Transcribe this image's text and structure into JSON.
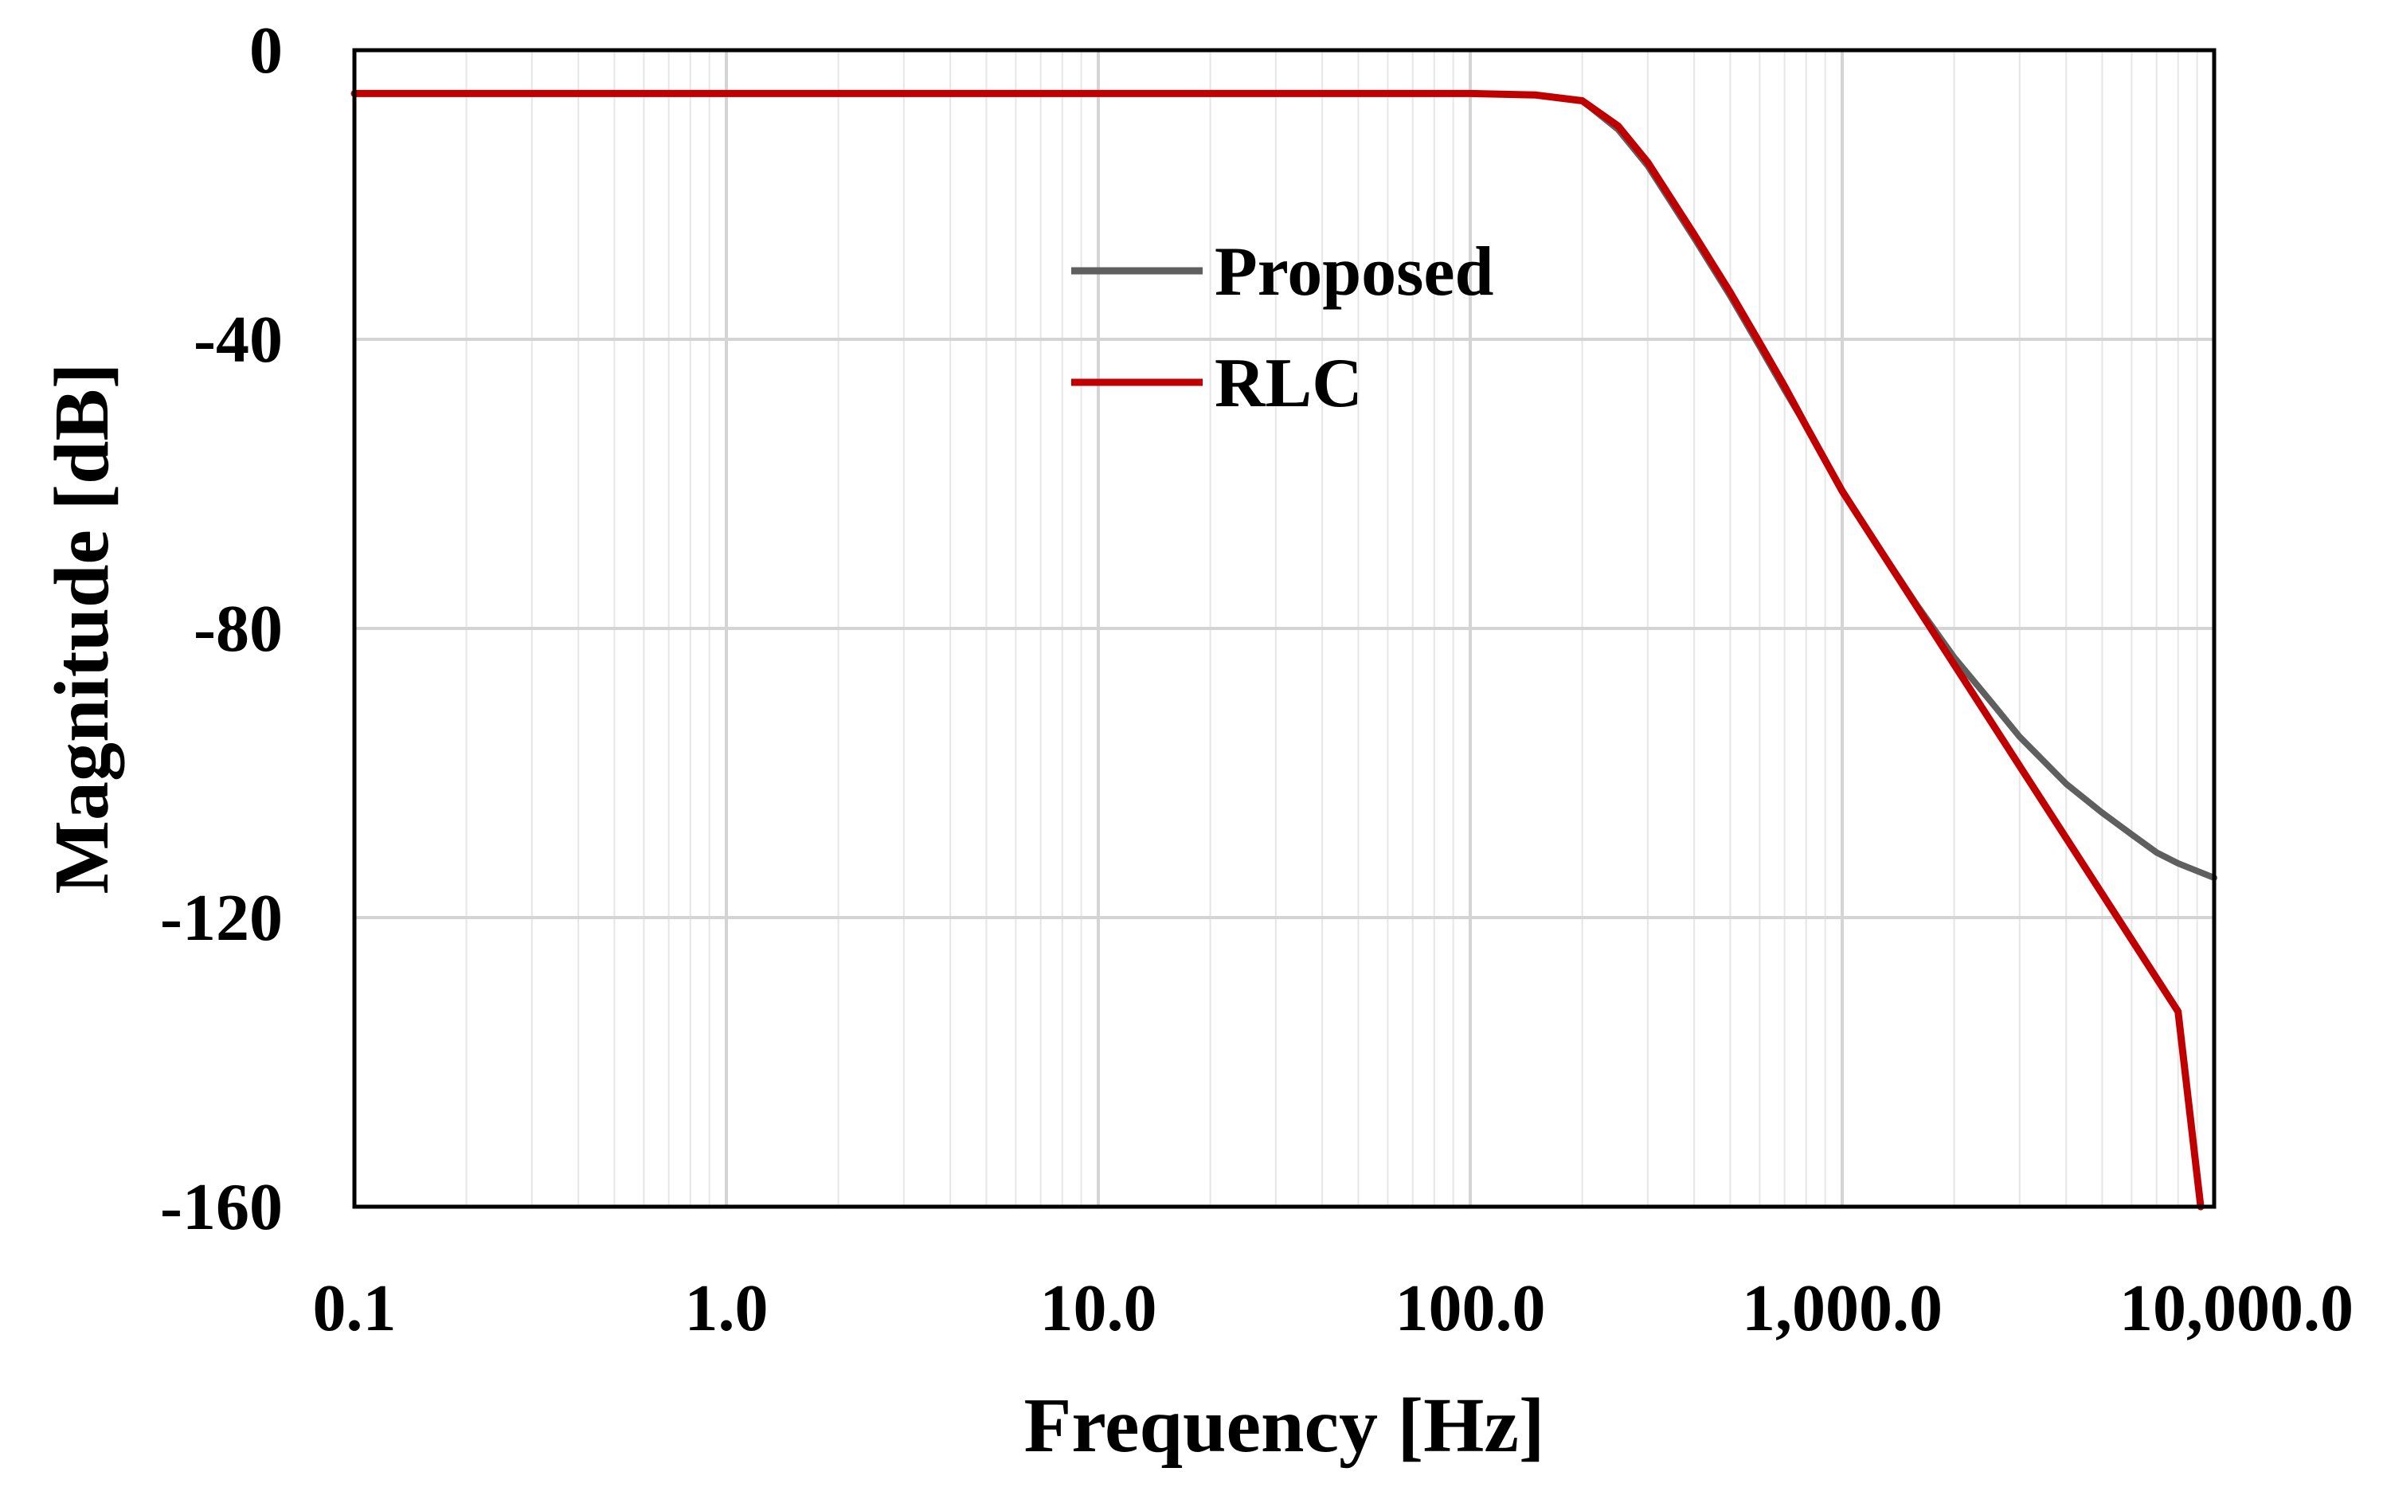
{
  "chart_data": {
    "type": "line",
    "title": "",
    "xlabel": "Frequency [Hz]",
    "ylabel": "Magnitude [dB]",
    "xscale": "log",
    "xlim": [
      0.1,
      10000
    ],
    "ylim": [
      -160,
      0
    ],
    "grid": true,
    "legend_position": "center-top",
    "x_ticks": [
      0.1,
      1,
      10,
      100,
      1000,
      10000
    ],
    "x_tick_labels": [
      "0.1",
      "1.0",
      "10.0",
      "100.0",
      "1,000.0",
      "10,000.0"
    ],
    "y_ticks": [
      0,
      -40,
      -80,
      -120,
      -160
    ],
    "y_tick_labels": [
      "0",
      "-40",
      "-80",
      "-120",
      "-160"
    ],
    "series": [
      {
        "name": "Proposed",
        "color": "#5f5f5f",
        "x": [
          0.1,
          1,
          10,
          100,
          150,
          200,
          250,
          300,
          400,
          500,
          600,
          700,
          800,
          1000,
          1300,
          1600,
          2000,
          2500,
          3000,
          4000,
          5000,
          6000,
          7000,
          8000,
          10000
        ],
        "y": [
          -6,
          -6,
          -6,
          -6,
          -6.2,
          -7,
          -11,
          -16,
          -26,
          -34,
          -41,
          -47,
          -52,
          -61,
          -70,
          -77,
          -84,
          -90,
          -95,
          -101.5,
          -105.5,
          -108.5,
          -111,
          -112.5,
          -114.5
        ]
      },
      {
        "name": "RLC",
        "color": "#c00000",
        "x": [
          0.1,
          1,
          10,
          100,
          150,
          200,
          250,
          300,
          400,
          500,
          600,
          700,
          800,
          1000,
          2000,
          4000,
          8000,
          9200
        ],
        "y": [
          -6,
          -6,
          -6,
          -6,
          -6.2,
          -7,
          -10.5,
          -15.5,
          -25.5,
          -33.5,
          -40.5,
          -46.5,
          -52,
          -61,
          -85,
          -109,
          -133,
          -160
        ]
      }
    ]
  }
}
